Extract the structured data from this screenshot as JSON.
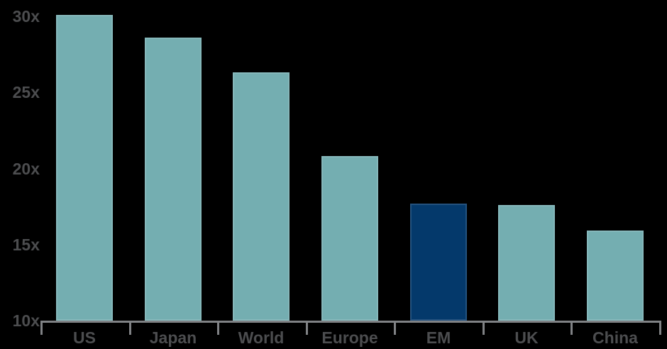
{
  "chart_data": {
    "type": "bar",
    "categories": [
      "US",
      "Japan",
      "World",
      "Europe",
      "EM",
      "UK",
      "China"
    ],
    "values": [
      30.1,
      28.6,
      26.3,
      20.8,
      17.7,
      17.6,
      15.9
    ],
    "highlight_category": "EM",
    "ytick_values": [
      30,
      25,
      20,
      15,
      10
    ],
    "ytick_labels": [
      "30x",
      "25x",
      "20x",
      "15x",
      "10x"
    ],
    "ylim": [
      10,
      30
    ],
    "bar_color": "#74AEB1",
    "highlight_color": "#04396B",
    "axis_color": "#808285",
    "label_color": "#4C4D4F",
    "background_color": "#000000",
    "legend": "none",
    "grid": "off",
    "title": ""
  }
}
